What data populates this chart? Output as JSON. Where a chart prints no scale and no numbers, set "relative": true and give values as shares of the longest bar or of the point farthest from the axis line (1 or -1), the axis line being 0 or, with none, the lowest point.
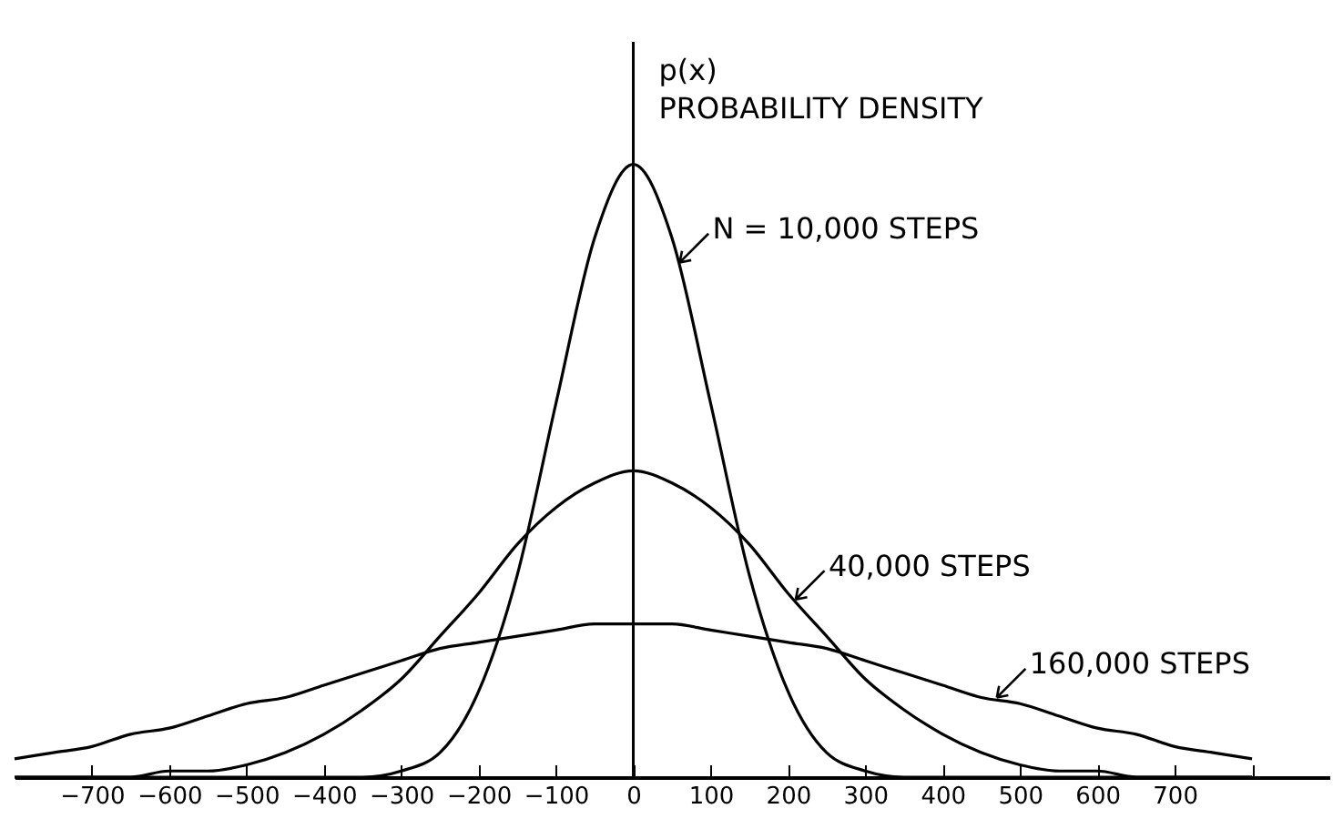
{
  "chart_data": {
    "type": "line",
    "relative": true,
    "ylabel": "p(x)\nPROBABILITY DENSITY",
    "x": [
      -800,
      -750,
      -700,
      -650,
      -600,
      -550,
      -500,
      -450,
      -400,
      -350,
      -300,
      -250,
      -200,
      -150,
      -100,
      -50,
      0,
      50,
      100,
      150,
      200,
      250,
      300,
      350,
      400,
      450,
      500,
      550,
      600,
      650,
      700,
      750,
      800
    ],
    "series": [
      {
        "color": "#000000",
        "values": [
          0,
          0,
          0,
          0,
          0,
          0,
          0,
          0,
          0,
          0,
          0.01,
          0.04,
          0.14,
          0.33,
          0.61,
          0.88,
          1,
          0.88,
          0.61,
          0.33,
          0.14,
          0.04,
          0.01,
          0,
          0,
          0,
          0,
          0,
          0,
          0,
          0,
          0,
          0
        ]
      },
      {
        "color": "#000000",
        "values": [
          0,
          0,
          0,
          0,
          0.01,
          0.01,
          0.02,
          0.04,
          0.07,
          0.11,
          0.16,
          0.23,
          0.3,
          0.38,
          0.44,
          0.48,
          0.5,
          0.48,
          0.44,
          0.38,
          0.3,
          0.23,
          0.16,
          0.11,
          0.07,
          0.04,
          0.02,
          0.01,
          0.01,
          0,
          0,
          0,
          0
        ]
      },
      {
        "color": "#000000",
        "values": [
          0.03,
          0.04,
          0.05,
          0.07,
          0.08,
          0.1,
          0.12,
          0.13,
          0.15,
          0.17,
          0.19,
          0.21,
          0.22,
          0.23,
          0.24,
          0.25,
          0.25,
          0.25,
          0.24,
          0.23,
          0.22,
          0.21,
          0.19,
          0.17,
          0.15,
          0.13,
          0.12,
          0.1,
          0.08,
          0.07,
          0.05,
          0.04,
          0.03
        ]
      }
    ],
    "xlim": [
      -800,
      900
    ],
    "xticks": [
      -700,
      -600,
      -500,
      -400,
      -300,
      -200,
      -100,
      0,
      100,
      200,
      300,
      400,
      500,
      600,
      700,
      {
        "value": 800,
        "label": null
      }
    ],
    "ref_lines": [
      {
        "axis": "x",
        "value": 0,
        "color": "#000000"
      }
    ],
    "annotations": [
      {
        "text": "N = 10,000 STEPS",
        "x": 60,
        "y": 0.84
      },
      {
        "text": "40,000 STEPS",
        "x": 210,
        "y": 0.29
      },
      {
        "text": "160,000 STEPS",
        "x": 470,
        "y": 0.13
      }
    ],
    "grid": false,
    "marker": "none",
    "line_style": "solid"
  }
}
